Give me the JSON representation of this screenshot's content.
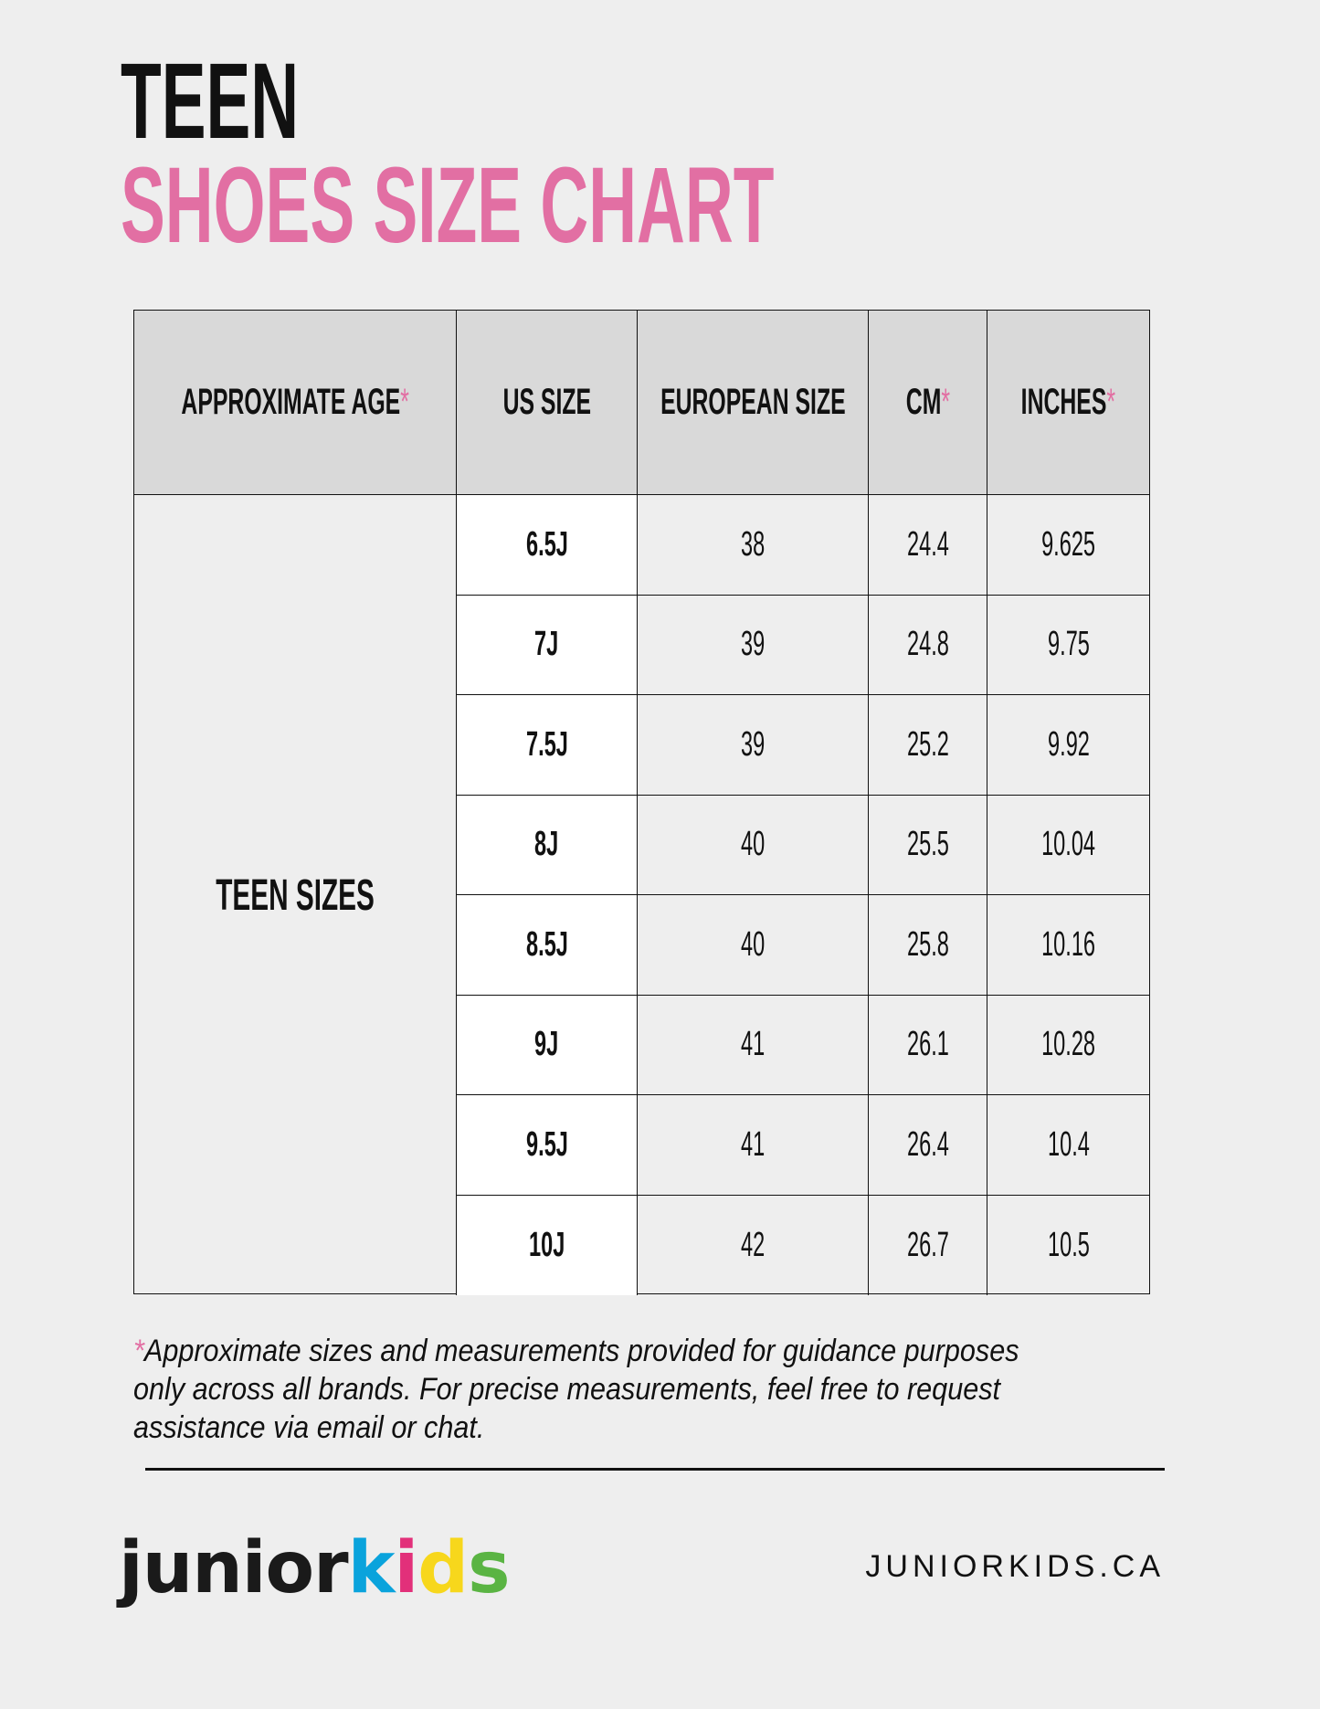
{
  "title": {
    "line1": "TEEN",
    "line2": "SHOES SIZE CHART"
  },
  "colors": {
    "accent": "#e26fa3",
    "header_bg": "#d9d9d9",
    "page_bg": "#eeeeee"
  },
  "table": {
    "headers": [
      {
        "label": "APPROXIMATE AGE",
        "asterisk": "*"
      },
      {
        "label": "US SIZE",
        "asterisk": ""
      },
      {
        "label": "EUROPEAN SIZE",
        "asterisk": ""
      },
      {
        "label": "CM",
        "asterisk": "*"
      },
      {
        "label": "INCHES",
        "asterisk": "*"
      }
    ],
    "group_label": "TEEN SIZES",
    "rows": [
      [
        "6.5J",
        "38",
        "24.4",
        "9.625"
      ],
      [
        "7J",
        "39",
        "24.8",
        "9.75"
      ],
      [
        "7.5J",
        "39",
        "25.2",
        "9.92"
      ],
      [
        "8J",
        "40",
        "25.5",
        "10.04"
      ],
      [
        "8.5J",
        "40",
        "25.8",
        "10.16"
      ],
      [
        "9J",
        "41",
        "26.1",
        "10.28"
      ],
      [
        "9.5J",
        "41",
        "26.4",
        "10.4"
      ],
      [
        "10J",
        "42",
        "26.7",
        "10.5"
      ]
    ]
  },
  "footnote": {
    "asterisk": "*",
    "text": "Approximate sizes and measurements provided for guidance purposes only across all brands. For precise measurements, feel free to request assistance via email or chat."
  },
  "footer": {
    "logo": {
      "part1": "junior",
      "k": "k",
      "i": "i",
      "d": "d",
      "s": "s"
    },
    "website": "JUNIORKIDS.CA"
  }
}
